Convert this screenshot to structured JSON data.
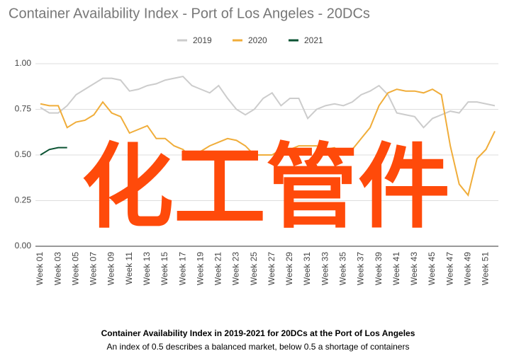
{
  "chart_data": {
    "type": "line",
    "title": "Container Availability Index - Port of Los Angeles - 20DCs",
    "caption": "Container Availability Index in 2019-2021 for 20DCs at the Port of Los Angeles",
    "subcaption": "An index of 0.5 describes a balanced market, below 0.5 a shortage of containers",
    "watermark": "化工管件",
    "categories": [
      "Week 01",
      null,
      "Week 03",
      null,
      "Week 05",
      null,
      "Week 07",
      null,
      "Week 09",
      null,
      "Week 11",
      null,
      "Week 13",
      null,
      "Week 15",
      null,
      "Week 17",
      null,
      "Week 19",
      null,
      "Week 21",
      null,
      "Week 23",
      null,
      "Week 25",
      null,
      "Week 27",
      null,
      "Week 29",
      null,
      "Week 31",
      null,
      "Week 33",
      null,
      "Week 35",
      null,
      "Week 37",
      null,
      "Week 39",
      null,
      "Week 41",
      null,
      "Week 43",
      null,
      "Week 45",
      null,
      "Week 47",
      null,
      "Week 49",
      null,
      "Week 51",
      null
    ],
    "series": [
      {
        "name": "2019",
        "color": "#cccccc",
        "values": [
          0.76,
          0.73,
          0.73,
          0.77,
          0.83,
          0.86,
          0.89,
          0.92,
          0.92,
          0.91,
          0.85,
          0.86,
          0.88,
          0.89,
          0.91,
          0.92,
          0.93,
          0.88,
          0.86,
          0.84,
          0.88,
          0.81,
          0.75,
          0.72,
          0.75,
          0.81,
          0.84,
          0.77,
          0.81,
          0.81,
          0.7,
          0.75,
          0.77,
          0.78,
          0.77,
          0.79,
          0.83,
          0.85,
          0.88,
          0.83,
          0.73,
          0.72,
          0.71,
          0.65,
          0.7,
          0.72,
          0.74,
          0.73,
          0.79,
          0.79,
          0.78,
          0.77
        ]
      },
      {
        "name": "2020",
        "color": "#f0ad3a",
        "values": [
          0.78,
          0.77,
          0.77,
          0.65,
          0.68,
          0.69,
          0.72,
          0.79,
          0.73,
          0.71,
          0.62,
          0.64,
          0.66,
          0.59,
          0.59,
          0.55,
          0.53,
          0.48,
          0.52,
          0.55,
          0.57,
          0.59,
          0.58,
          0.55,
          0.5,
          0.5,
          0.5,
          0.53,
          0.53,
          0.55,
          0.55,
          0.55,
          0.53,
          0.54,
          0.5,
          0.53,
          0.59,
          0.65,
          0.77,
          0.84,
          0.86,
          0.85,
          0.85,
          0.84,
          0.86,
          0.83,
          0.55,
          0.34,
          0.28,
          0.48,
          0.53,
          0.63
        ]
      },
      {
        "name": "2021",
        "color": "#0b5333",
        "values": [
          0.5,
          0.53,
          0.54,
          0.54,
          null,
          null,
          null,
          null,
          null,
          null,
          null,
          null,
          null,
          null,
          null,
          null,
          null,
          null,
          null,
          null,
          null,
          null,
          null,
          null,
          null,
          null,
          null,
          null,
          null,
          null,
          null,
          null,
          null,
          null,
          null,
          null,
          null,
          null,
          null,
          null,
          null,
          null,
          null,
          null,
          null,
          null,
          null,
          null,
          null,
          null,
          null,
          null
        ]
      }
    ],
    "ylim": [
      0,
      1
    ],
    "yticks": [
      {
        "value": 0,
        "label": "0.00"
      },
      {
        "value": 0.25,
        "label": "0.25"
      },
      {
        "value": 0.5,
        "label": "0.50"
      },
      {
        "value": 0.75,
        "label": "0.75"
      },
      {
        "value": 1,
        "label": "1.00"
      }
    ],
    "grid": true,
    "legend": "top"
  }
}
